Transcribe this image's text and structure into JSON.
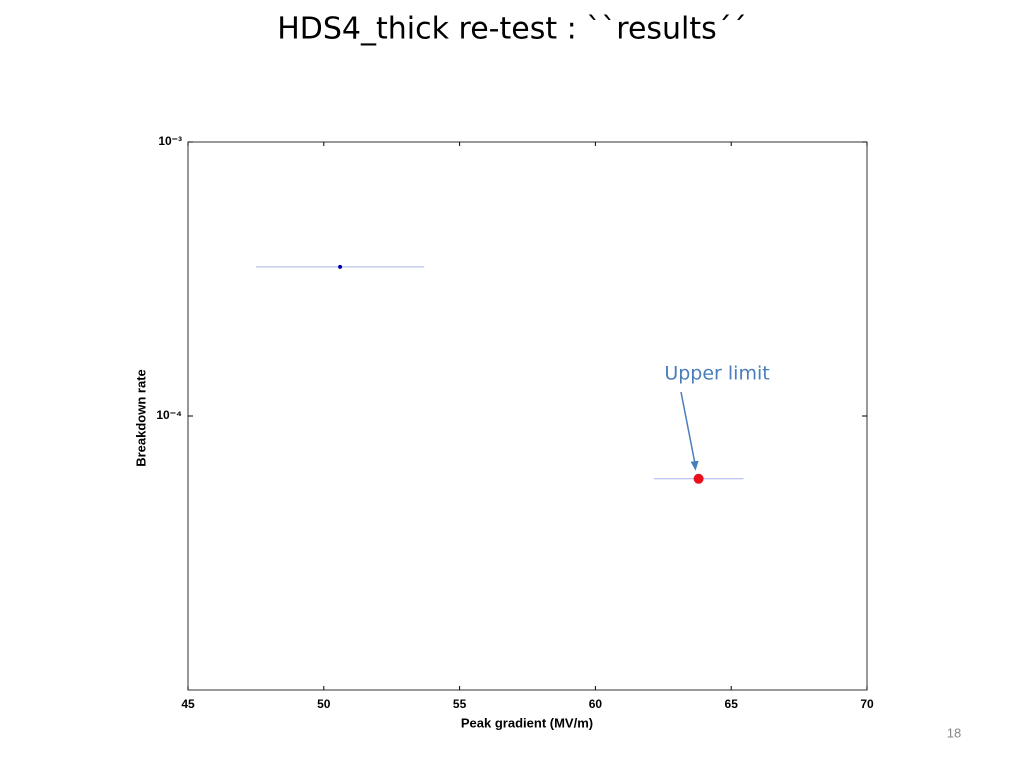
{
  "title": "HDS4_thick re-test : ``results´´",
  "page_number": "18",
  "chart_data": {
    "type": "scatter",
    "xlabel": "Peak gradient (MV/m)",
    "ylabel": "Breakdown rate",
    "xlim": [
      45,
      70
    ],
    "xticks": [
      45,
      50,
      55,
      60,
      65,
      70
    ],
    "ylim": [
      1e-05,
      0.001
    ],
    "log_y": true,
    "yticks": [
      {
        "value": 0.001,
        "label": "10⁻³"
      },
      {
        "value": 0.0001,
        "label": "10⁻⁴"
      }
    ],
    "series": [
      {
        "color": "#0000aa",
        "x": [
          50.6
        ],
        "values": [
          0.00035
        ],
        "xerr": [
          3.1
        ]
      },
      {
        "color": "#e8101a",
        "x": [
          63.8
        ],
        "values": [
          5.9e-05
        ],
        "xerr": [
          1.65
        ]
      }
    ],
    "annotation": {
      "text": "Upper limit",
      "x": 63.8,
      "y": 5.9e-05
    }
  }
}
